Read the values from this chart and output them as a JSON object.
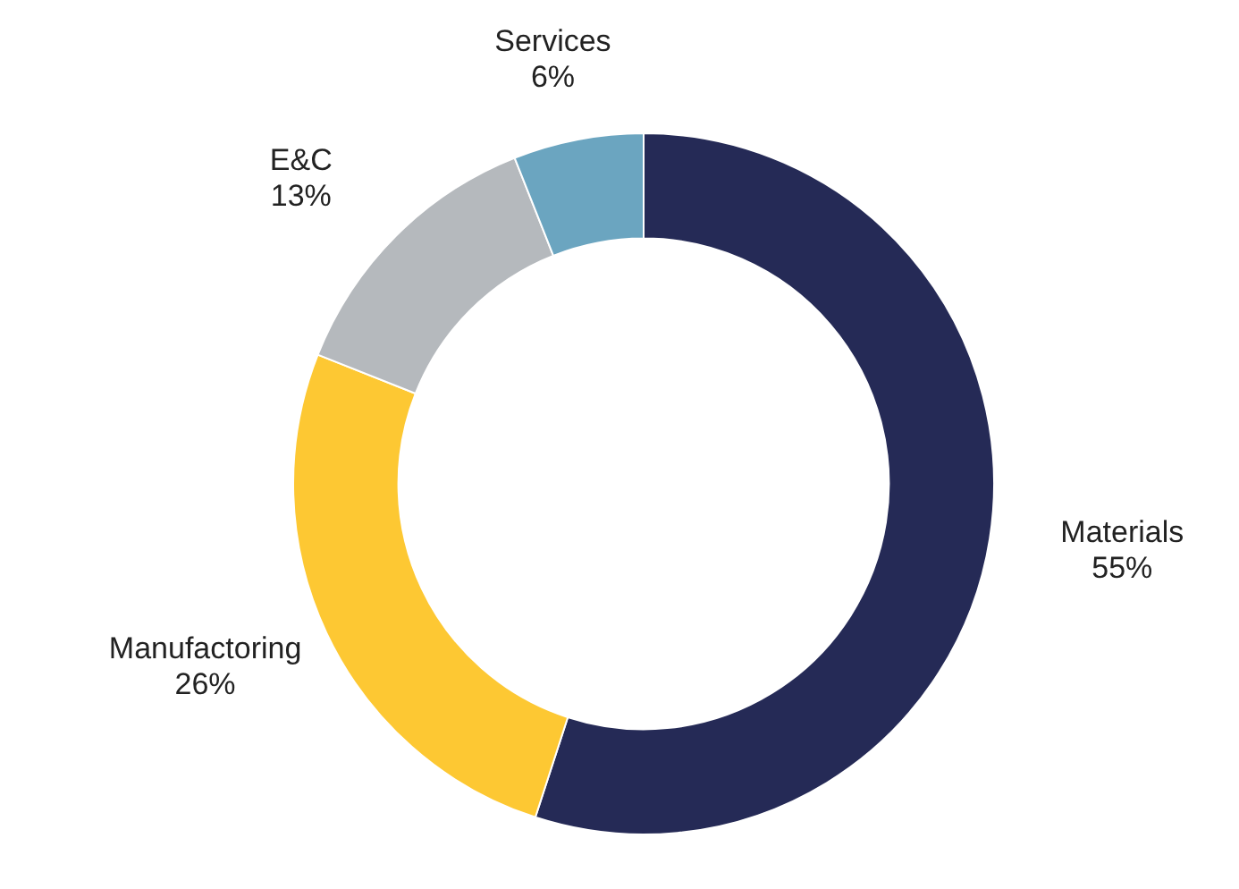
{
  "chart_data": {
    "type": "donut",
    "categories": [
      "Materials",
      "Manufactoring",
      "E&C",
      "Services"
    ],
    "values": [
      55,
      26,
      13,
      6
    ],
    "colors": [
      "#252a56",
      "#fdc833",
      "#b5b9bd",
      "#6ba5c0"
    ],
    "value_labels": [
      "55%",
      "26%",
      "13%",
      "6%"
    ],
    "legend": false
  }
}
